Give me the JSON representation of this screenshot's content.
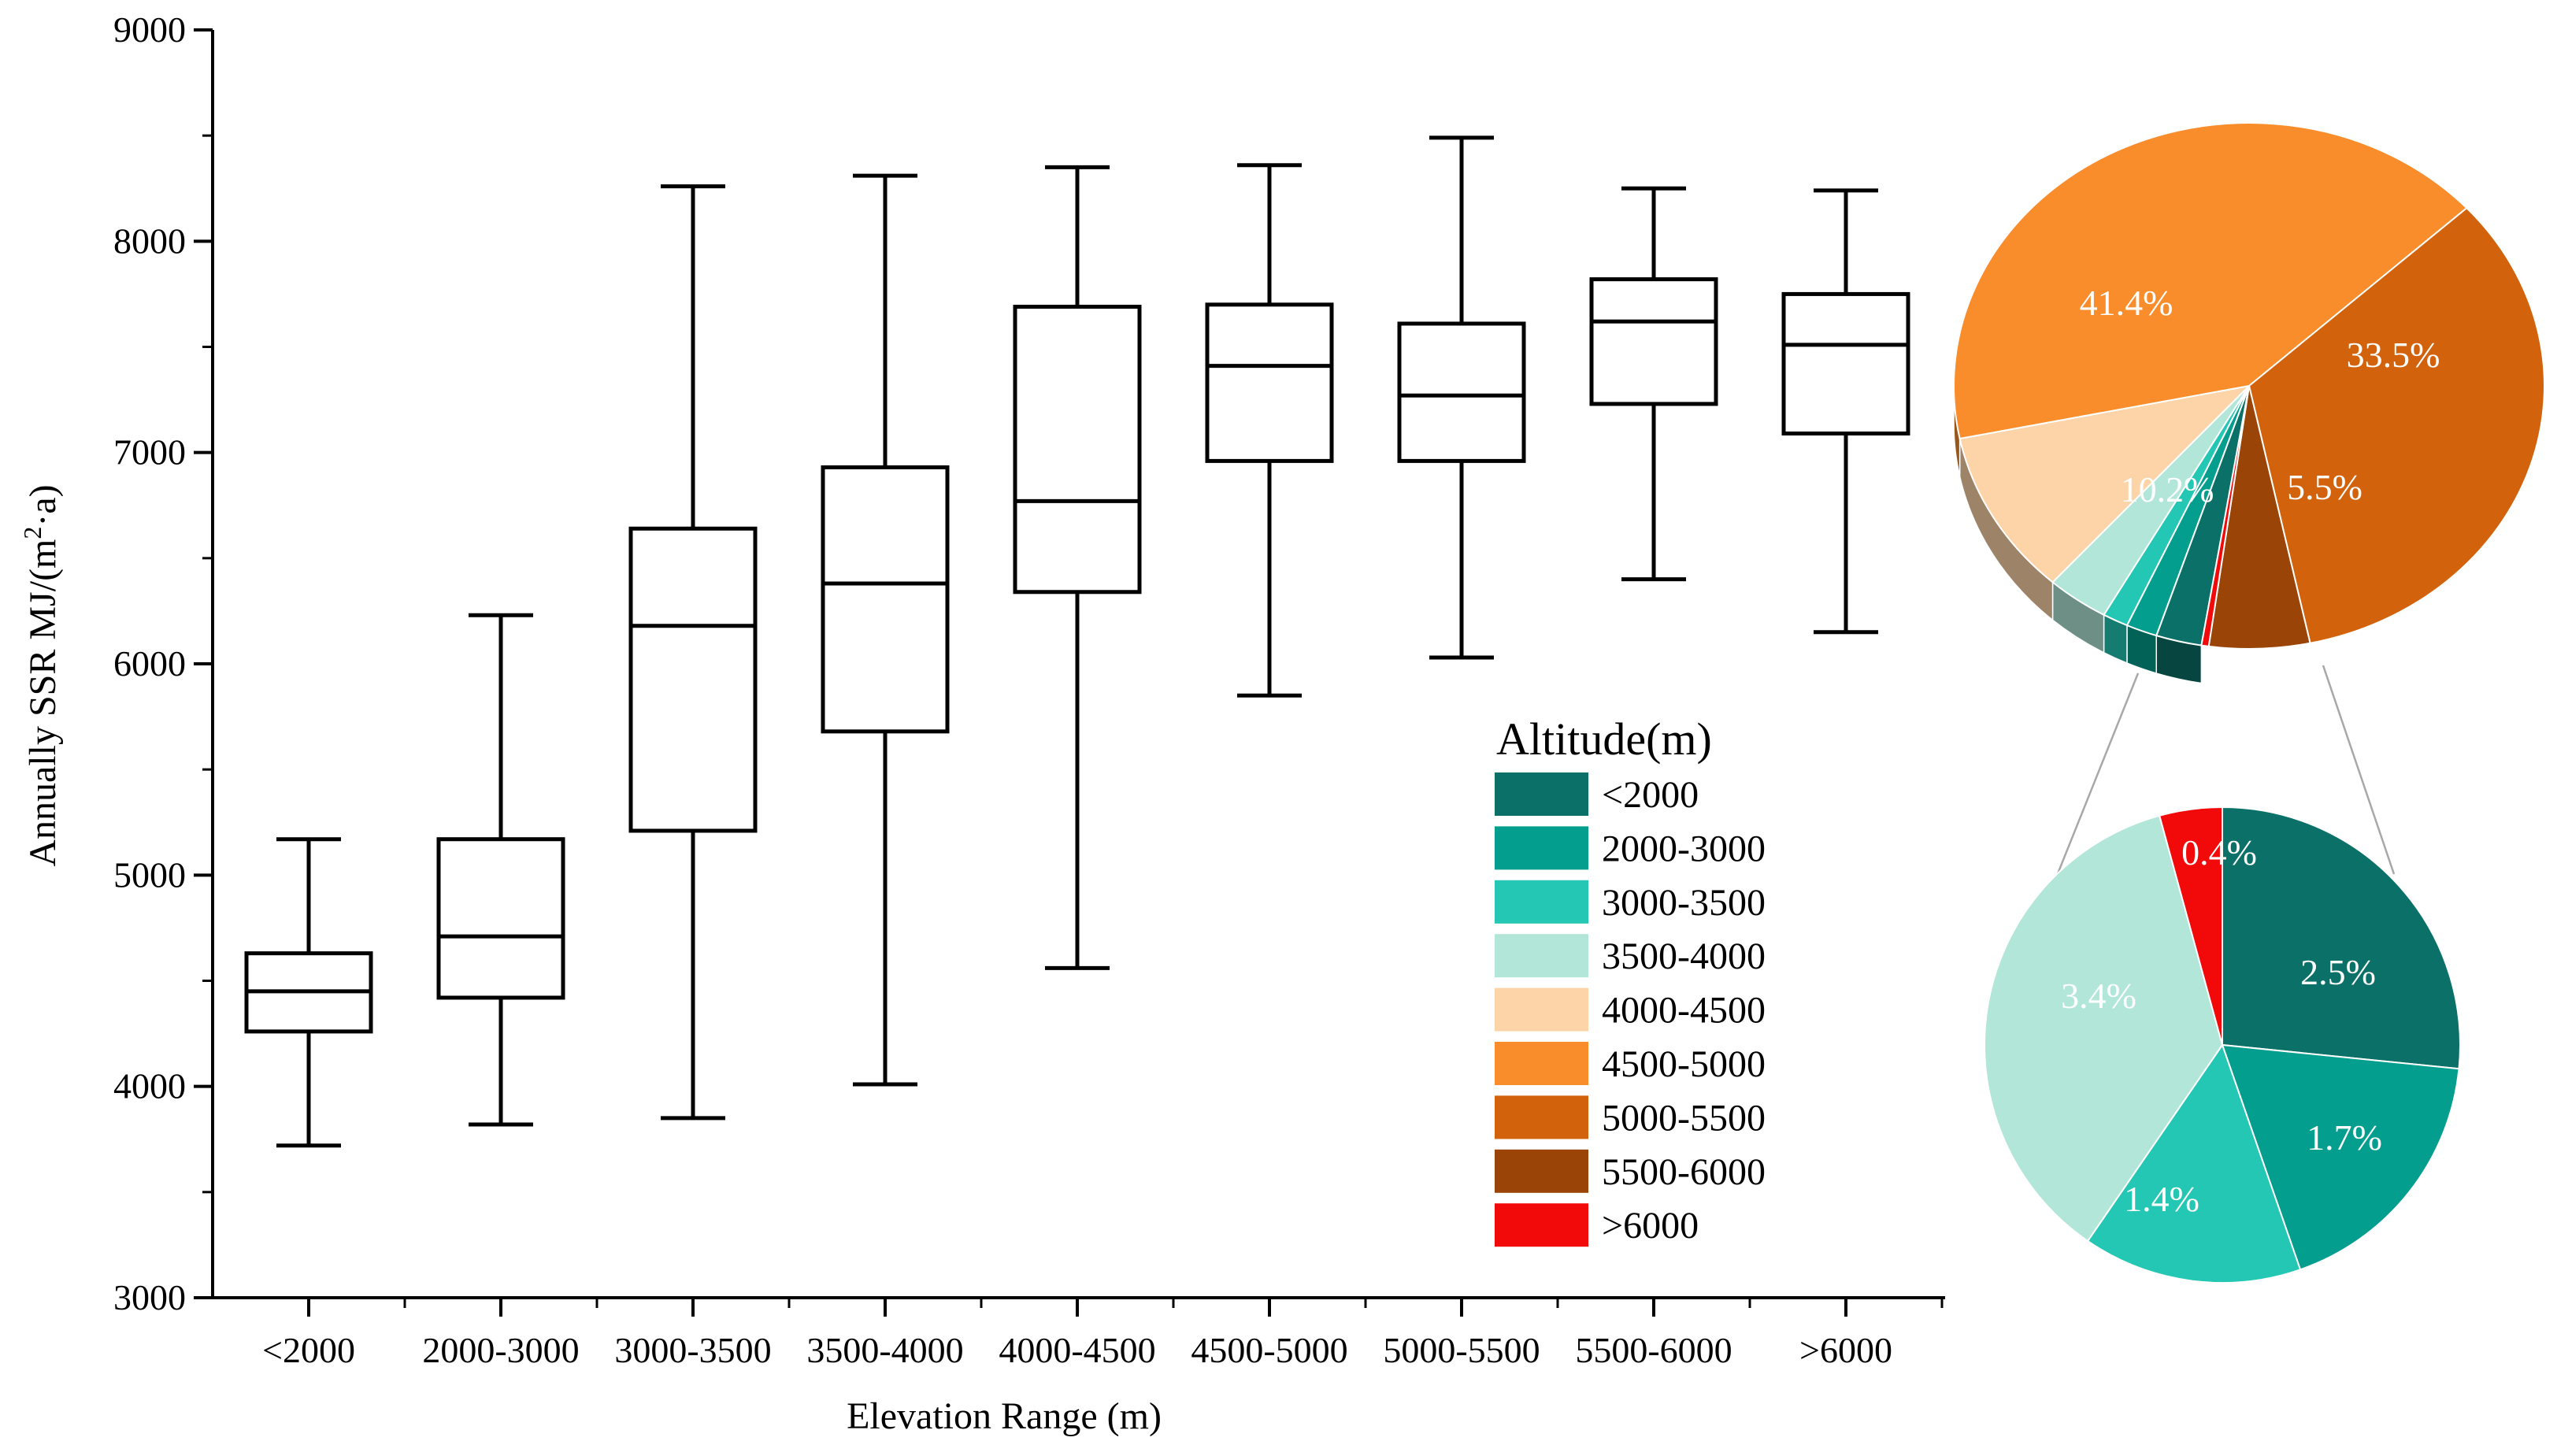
{
  "chart_data": [
    {
      "type": "box",
      "title": "",
      "xlabel": "Elevation Range (m)",
      "ylabel": "Annually SSR MJ/(m²·a)",
      "ylim": [
        3000,
        9000
      ],
      "yticks": [
        "3000",
        "4000",
        "5000",
        "6000",
        "7000",
        "8000",
        "9000"
      ],
      "categories": [
        "<2000",
        "2000-3000",
        "3000-3500",
        "3500-4000",
        "4000-4500",
        "4500-5000",
        "5000-5500",
        "5500-6000",
        ">6000"
      ],
      "boxes": [
        {
          "min": 3720,
          "q1": 4260,
          "median": 4450,
          "q3": 4630,
          "max": 5170
        },
        {
          "min": 3820,
          "q1": 4420,
          "median": 4710,
          "q3": 5170,
          "max": 6230
        },
        {
          "min": 3850,
          "q1": 5210,
          "median": 6180,
          "q3": 6640,
          "max": 8260
        },
        {
          "min": 4010,
          "q1": 5680,
          "median": 6380,
          "q3": 6930,
          "max": 8310
        },
        {
          "min": 4560,
          "q1": 6340,
          "median": 6770,
          "q3": 7690,
          "max": 8350
        },
        {
          "min": 5850,
          "q1": 6960,
          "median": 7410,
          "q3": 7700,
          "max": 8360
        },
        {
          "min": 6030,
          "q1": 6960,
          "median": 7270,
          "q3": 7610,
          "max": 8490
        },
        {
          "min": 6400,
          "q1": 7230,
          "median": 7620,
          "q3": 7820,
          "max": 8250
        },
        {
          "min": 6150,
          "q1": 7090,
          "median": 7510,
          "q3": 7750,
          "max": 8240
        }
      ]
    },
    {
      "type": "pie",
      "legend_title": "Altitude(m)",
      "legend_position": "center-right",
      "slices": [
        {
          "label": "<2000",
          "color": "#0b7168",
          "value": 2.5
        },
        {
          "label": "2000-3000",
          "color": "#039e8e",
          "value": 1.7
        },
        {
          "label": "3000-3500",
          "color": "#24c6b4",
          "value": 1.4
        },
        {
          "label": "3500-4000",
          "color": "#b2e6d8",
          "value": 3.4
        },
        {
          "label": "4000-4500",
          "color": "#fdd4a8",
          "value": 10.2
        },
        {
          "label": "4500-5000",
          "color": "#f98c2b",
          "value": 41.4
        },
        {
          "label": "5000-5500",
          "color": "#d2620b",
          "value": 33.5
        },
        {
          "label": "5500-6000",
          "color": "#9a4407",
          "value": 5.5
        },
        {
          "label": ">6000",
          "color": "#f20a0a",
          "value": 0.4
        }
      ],
      "main_pie_labels": [
        {
          "slice": "4000-4500",
          "text": "10.2%"
        },
        {
          "slice": "4500-5000",
          "text": "41.4%"
        },
        {
          "slice": "5000-5500",
          "text": "33.5%"
        },
        {
          "slice": "5500-6000",
          "text": "5.5%"
        }
      ],
      "detail_pie_labels": [
        {
          "slice": "<2000",
          "text": "2.5%"
        },
        {
          "slice": "2000-3000",
          "text": "1.7%"
        },
        {
          "slice": "3000-3500",
          "text": "1.4%"
        },
        {
          "slice": "3500-4000",
          "text": "3.4%"
        },
        {
          "slice": ">6000",
          "text": "0.4%"
        }
      ]
    }
  ]
}
